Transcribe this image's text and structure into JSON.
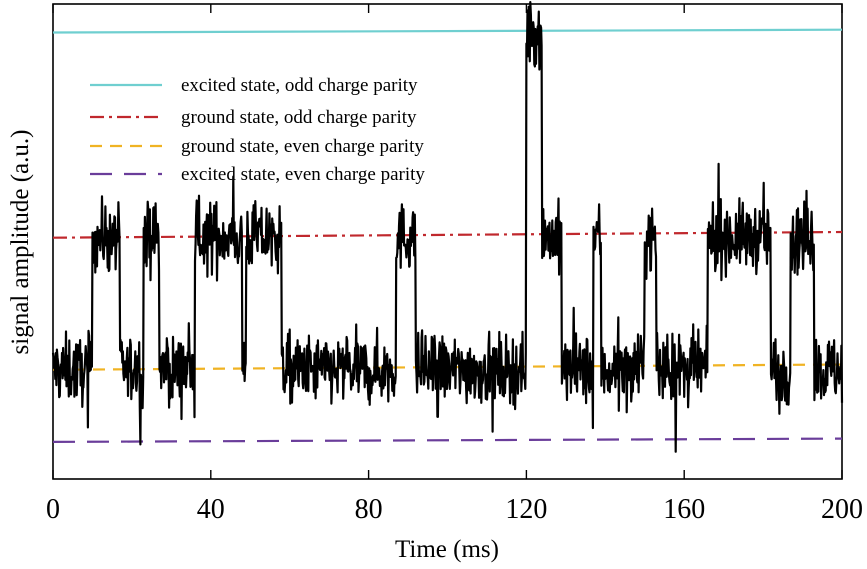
{
  "chart_data": {
    "type": "line",
    "title": "",
    "xlabel": "Time (ms)",
    "ylabel": "signal amplitude (a.u.)",
    "xlim": [
      0,
      200
    ],
    "ylim": [
      0,
      1
    ],
    "xticks": [
      0,
      40,
      80,
      120,
      160,
      200
    ],
    "xtick_labels": [
      "0",
      "40",
      "80",
      "120",
      "160",
      "200"
    ],
    "yticks_shown": false,
    "grid": false,
    "legend_position": "upper-left",
    "legend": [
      {
        "label": "excited state, odd charge parity",
        "color": "#6fcfd0",
        "dash": "solid"
      },
      {
        "label": "ground state, odd charge parity",
        "color": "#c0282d",
        "dash": "dashdot"
      },
      {
        "label": "ground state, even charge parity",
        "color": "#f0b323",
        "dash": "dashed"
      },
      {
        "label": "excited state, even charge parity",
        "color": "#6a3d9a",
        "dash": "longdash"
      }
    ],
    "reference_lines": [
      {
        "name": "excited state, odd charge parity",
        "x": [
          0,
          200
        ],
        "y": [
          0.94,
          0.946
        ]
      },
      {
        "name": "ground state, odd charge parity",
        "x": [
          0,
          200
        ],
        "y": [
          0.508,
          0.52
        ]
      },
      {
        "name": "ground state, even charge parity",
        "x": [
          0,
          200
        ],
        "y": [
          0.23,
          0.241
        ]
      },
      {
        "name": "excited state, even charge parity",
        "x": [
          0,
          200
        ],
        "y": [
          0.078,
          0.085
        ]
      }
    ],
    "trace_color": "#000000",
    "trace_levels": {
      "ground_odd": 0.51,
      "ground_even": 0.23,
      "excited_odd": 0.94,
      "noise_sd": 0.035
    },
    "trace_segments": [
      {
        "x0": 0,
        "x1": 10,
        "level": "ground_even"
      },
      {
        "x0": 10,
        "x1": 17,
        "level": "ground_odd"
      },
      {
        "x0": 17,
        "x1": 23,
        "level": "ground_even"
      },
      {
        "x0": 23,
        "x1": 27,
        "level": "ground_odd"
      },
      {
        "x0": 27,
        "x1": 36,
        "level": "ground_even"
      },
      {
        "x0": 36,
        "x1": 48,
        "level": "ground_odd"
      },
      {
        "x0": 48,
        "x1": 49,
        "level": "ground_even"
      },
      {
        "x0": 49,
        "x1": 58,
        "level": "ground_odd"
      },
      {
        "x0": 58,
        "x1": 87,
        "level": "ground_even"
      },
      {
        "x0": 87,
        "x1": 92,
        "level": "ground_odd"
      },
      {
        "x0": 92,
        "x1": 120,
        "level": "ground_even"
      },
      {
        "x0": 120,
        "x1": 124,
        "level": "excited_odd"
      },
      {
        "x0": 124,
        "x1": 129,
        "level": "ground_odd"
      },
      {
        "x0": 129,
        "x1": 137,
        "level": "ground_even"
      },
      {
        "x0": 137,
        "x1": 139,
        "level": "ground_odd"
      },
      {
        "x0": 139,
        "x1": 150,
        "level": "ground_even"
      },
      {
        "x0": 150,
        "x1": 153,
        "level": "ground_odd"
      },
      {
        "x0": 153,
        "x1": 166,
        "level": "ground_even"
      },
      {
        "x0": 166,
        "x1": 182,
        "level": "ground_odd"
      },
      {
        "x0": 182,
        "x1": 187,
        "level": "ground_even"
      },
      {
        "x0": 187,
        "x1": 193,
        "level": "ground_odd"
      },
      {
        "x0": 193,
        "x1": 200,
        "level": "ground_even"
      }
    ]
  }
}
